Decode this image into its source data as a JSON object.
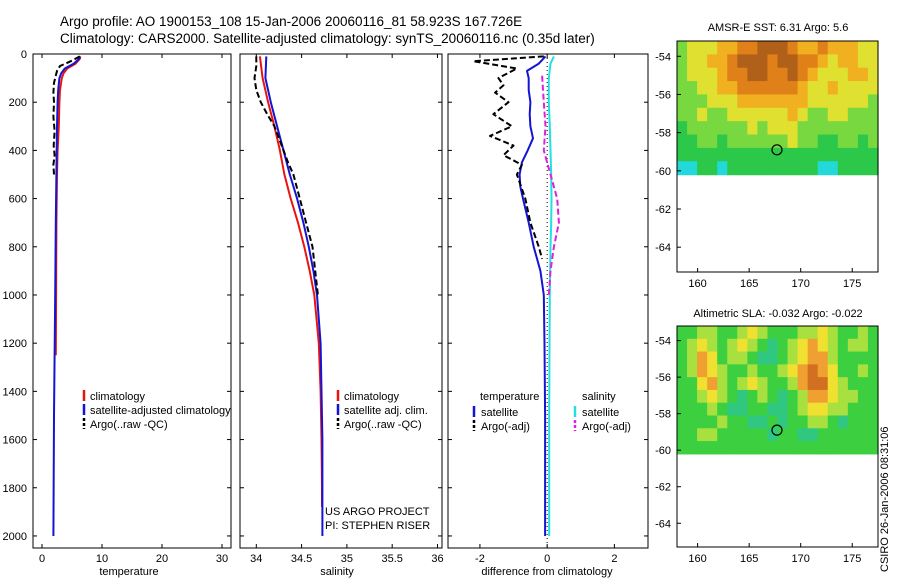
{
  "header": {
    "line1": "Argo profile: AO 1900153_108 15-Jan-2006 20060116_81 58.923S 167.726E",
    "line2": "Climatology: CARS2000. Satellite-adjusted climatology: synTS_20060116.nc (0.35d later)"
  },
  "side_label": "CSIRO 26-Jan-2006 08:31:06",
  "colors": {
    "climatology": "#e8150f",
    "satellite": "#1414d2",
    "argo": "#000000",
    "salinity_satellite": "#22e0e0",
    "salinity_argo": "#e020e0"
  },
  "chart_data": [
    {
      "type": "line",
      "id": "temperature",
      "xlabel": "temperature",
      "ylabel": "",
      "xlim": [
        -1.5,
        31.5
      ],
      "ylim": [
        2050,
        0
      ],
      "xticks": [
        0,
        10,
        20,
        30
      ],
      "yticks": [
        0,
        200,
        400,
        600,
        800,
        1000,
        1200,
        1400,
        1600,
        1800,
        2000
      ],
      "legend": {
        "placement": "lower-right",
        "entries": [
          "climatology",
          "satellite-adjusted climatology",
          "Argo(..raw -QC)"
        ]
      },
      "series": [
        {
          "name": "climatology",
          "style": "solid",
          "y": [
            10,
            20,
            40,
            60,
            80,
            100,
            150,
            200,
            300,
            400,
            500,
            700,
            1000,
            1250
          ],
          "x": [
            6.4,
            6.3,
            5.6,
            4.2,
            3.6,
            3.3,
            3.0,
            2.9,
            2.8,
            2.6,
            2.5,
            2.4,
            2.35,
            2.3
          ]
        },
        {
          "name": "satellite-adjusted climatology",
          "style": "solid",
          "y": [
            10,
            20,
            40,
            60,
            80,
            100,
            150,
            200,
            300,
            400,
            500,
            700,
            1000,
            1500,
            2000
          ],
          "x": [
            6.3,
            6.2,
            5.3,
            3.8,
            3.2,
            2.9,
            2.7,
            2.6,
            2.5,
            2.45,
            2.4,
            2.3,
            2.2,
            2.0,
            1.9
          ]
        },
        {
          "name": "Argo(..raw -QC)",
          "style": "dashed",
          "y": [
            10,
            30,
            50,
            70,
            90,
            120,
            160,
            200,
            260,
            320,
            380,
            420,
            460,
            500
          ],
          "x": [
            6.3,
            4.8,
            3.0,
            2.5,
            2.3,
            2.0,
            1.9,
            2.0,
            1.9,
            2.1,
            1.95,
            2.1,
            1.9,
            2.0
          ]
        }
      ]
    },
    {
      "type": "line",
      "id": "salinity",
      "xlabel": "salinity",
      "ylabel": "",
      "xlim": [
        33.82,
        36.05
      ],
      "ylim": [
        2050,
        0
      ],
      "xticks": [
        34,
        34.5,
        35,
        35.5,
        36
      ],
      "xticklabels": [
        "34",
        "34.5",
        "35",
        "35.5",
        "36"
      ],
      "legend": {
        "placement": "lower-right",
        "entries": [
          "climatology",
          "satellite adj. clim.",
          "Argo(..raw -QC)"
        ]
      },
      "annotation": [
        "US ARGO PROJECT",
        "PI: STEPHEN RISER"
      ],
      "series": [
        {
          "name": "climatology",
          "style": "solid",
          "y": [
            10,
            100,
            200,
            300,
            400,
            500,
            600,
            700,
            800,
            900,
            1000,
            1200,
            1400,
            1600,
            1800,
            1880
          ],
          "x": [
            34.04,
            34.07,
            34.13,
            34.2,
            34.26,
            34.31,
            34.38,
            34.46,
            34.53,
            34.59,
            34.64,
            34.69,
            34.71,
            34.72,
            34.725,
            34.725
          ]
        },
        {
          "name": "satellite adj. clim.",
          "style": "solid",
          "y": [
            10,
            100,
            200,
            300,
            400,
            500,
            600,
            700,
            800,
            900,
            1000,
            1200,
            1400,
            1600,
            1800,
            2000
          ],
          "x": [
            34.11,
            34.1,
            34.16,
            34.23,
            34.3,
            34.37,
            34.45,
            34.52,
            34.58,
            34.63,
            34.67,
            34.71,
            34.72,
            34.73,
            34.73,
            34.73
          ]
        },
        {
          "name": "Argo(..raw -QC)",
          "style": "dashed",
          "y": [
            10,
            50,
            100,
            150,
            200,
            250,
            300,
            350,
            400,
            450,
            500,
            600,
            700,
            800,
            900,
            1000
          ],
          "x": [
            34.0,
            34.0,
            33.98,
            34.0,
            34.05,
            34.12,
            34.2,
            34.25,
            34.3,
            34.35,
            34.41,
            34.48,
            34.55,
            34.62,
            34.65,
            34.68
          ]
        }
      ]
    },
    {
      "type": "line",
      "id": "difference",
      "xlabel": "difference from climatology",
      "ylabel": "",
      "xlim": [
        -2.95,
        3.0
      ],
      "ylim": [
        2050,
        0
      ],
      "xticks": [
        -2,
        0,
        2
      ],
      "legend": {
        "placement": "lower-center",
        "groups": [
          {
            "title": "temperature",
            "entries": [
              "satellite",
              "Argo(-adj)"
            ]
          },
          {
            "title": "salinity",
            "entries": [
              "satellite",
              "Argo(-adj)"
            ]
          }
        ]
      },
      "series": [
        {
          "name": "temperature satellite",
          "style": "solid",
          "color_key": "satellite",
          "y": [
            10,
            40,
            70,
            100,
            150,
            200,
            250,
            300,
            350,
            400,
            450,
            500,
            550,
            600,
            700,
            800,
            900,
            1000,
            1200,
            1500,
            2000
          ],
          "x": [
            -0.05,
            -0.25,
            -0.6,
            -0.55,
            -0.55,
            -0.5,
            -0.52,
            -0.5,
            -0.42,
            -0.58,
            -0.75,
            -0.82,
            -0.8,
            -0.72,
            -0.55,
            -0.4,
            -0.2,
            -0.1,
            -0.08,
            -0.06,
            -0.06
          ]
        },
        {
          "name": "temperature Argo(-adj)",
          "style": "dashed",
          "color_key": "argo",
          "y": [
            10,
            30,
            60,
            100,
            130,
            160,
            200,
            250,
            300,
            340,
            380,
            420,
            460,
            500,
            560,
            600,
            700,
            800,
            850
          ],
          "x": [
            -0.1,
            -2.2,
            -0.9,
            -1.45,
            -1.3,
            -1.55,
            -1.15,
            -1.6,
            -1.05,
            -1.7,
            -1.0,
            -1.3,
            -0.75,
            -0.9,
            -0.75,
            -0.65,
            -0.5,
            -0.25,
            -0.15
          ]
        },
        {
          "name": "salinity satellite",
          "style": "solid",
          "color_key": "salinity_satellite",
          "y": [
            10,
            40,
            100,
            200,
            300,
            400,
            500,
            600,
            700,
            800,
            1000,
            1200,
            1500,
            2000
          ],
          "x": [
            0.2,
            0.1,
            0.05,
            0.05,
            0.08,
            0.1,
            0.12,
            0.13,
            0.12,
            0.1,
            0.08,
            0.07,
            0.06,
            0.06
          ]
        },
        {
          "name": "salinity Argo(-adj)",
          "style": "dashed",
          "color_key": "salinity_argo",
          "y": [
            90,
            200,
            300,
            400,
            500,
            600,
            700,
            800,
            900,
            1000
          ],
          "x": [
            -0.15,
            -0.1,
            -0.05,
            -0.1,
            0.1,
            0.3,
            0.35,
            0.2,
            0.1,
            0.05
          ]
        }
      ]
    },
    {
      "type": "heatmap",
      "id": "sst-map",
      "title": "AMSR-E SST: 6.31 Argo: 5.6",
      "xlim": [
        158,
        177.5
      ],
      "ylim": [
        -65.3,
        -53.2
      ],
      "xticks": [
        160,
        165,
        170,
        175
      ],
      "yticks": [
        -54,
        -56,
        -58,
        -60,
        -62,
        -64
      ],
      "data_southern_limit": -60.2,
      "marker": {
        "lon": 167.7,
        "lat": -58.9
      },
      "palette": [
        "#22d8d8",
        "#2cc84a",
        "#78d840",
        "#e0e030",
        "#f0b020",
        "#e08018",
        "#b06018"
      ],
      "rows": [
        [
          2,
          3,
          3,
          3,
          4,
          4,
          5,
          5,
          6,
          6,
          6,
          5,
          4,
          4,
          5,
          4,
          4,
          4,
          3,
          3
        ],
        [
          2,
          3,
          3,
          4,
          4,
          5,
          6,
          6,
          6,
          5,
          6,
          6,
          5,
          5,
          4,
          3,
          4,
          4,
          3,
          3
        ],
        [
          2,
          3,
          3,
          3,
          4,
          5,
          5,
          6,
          6,
          5,
          5,
          6,
          5,
          4,
          3,
          3,
          3,
          4,
          4,
          3
        ],
        [
          2,
          2,
          3,
          3,
          4,
          4,
          5,
          5,
          5,
          5,
          5,
          5,
          4,
          3,
          3,
          4,
          3,
          3,
          3,
          3
        ],
        [
          2,
          2,
          2,
          3,
          3,
          3,
          4,
          4,
          4,
          4,
          4,
          4,
          4,
          3,
          3,
          3,
          3,
          3,
          3,
          2
        ],
        [
          2,
          2,
          3,
          2,
          2,
          3,
          3,
          3,
          3,
          3,
          3,
          4,
          3,
          2,
          2,
          3,
          3,
          2,
          2,
          2
        ],
        [
          1,
          2,
          2,
          2,
          2,
          2,
          2,
          3,
          2,
          3,
          3,
          3,
          2,
          2,
          2,
          2,
          2,
          2,
          2,
          2
        ],
        [
          1,
          1,
          2,
          2,
          1,
          2,
          2,
          2,
          2,
          2,
          2,
          3,
          2,
          2,
          1,
          1,
          2,
          2,
          1,
          2
        ],
        [
          1,
          1,
          1,
          1,
          1,
          1,
          1,
          1,
          1,
          1,
          1,
          1,
          1,
          1,
          1,
          1,
          1,
          1,
          1,
          1
        ],
        [
          0,
          0,
          1,
          1,
          0,
          1,
          1,
          1,
          1,
          1,
          1,
          1,
          1,
          1,
          0,
          0,
          1,
          1,
          1,
          1
        ]
      ]
    },
    {
      "type": "heatmap",
      "id": "sla-map",
      "title": "Altimetric SLA: -0.032 Argo: -0.022",
      "xlim": [
        158,
        177.5
      ],
      "ylim": [
        -65.3,
        -53.2
      ],
      "xticks": [
        160,
        165,
        170,
        175
      ],
      "yticks": [
        -54,
        -56,
        -58,
        -60,
        -62,
        -64
      ],
      "data_southern_limit": -60.2,
      "marker": {
        "lon": 167.7,
        "lat": -58.9
      },
      "palette": [
        "#20b8e0",
        "#30c880",
        "#3cd040",
        "#a8e040",
        "#f0e030",
        "#f0a030",
        "#d07020"
      ],
      "rows": [
        [
          2,
          2,
          3,
          3,
          2,
          2,
          3,
          4,
          3,
          2,
          2,
          2,
          3,
          3,
          4,
          3,
          2,
          2,
          3,
          2
        ],
        [
          2,
          3,
          4,
          3,
          2,
          3,
          4,
          3,
          2,
          1,
          2,
          3,
          4,
          5,
          4,
          3,
          2,
          3,
          3,
          2
        ],
        [
          2,
          3,
          5,
          4,
          2,
          3,
          3,
          2,
          1,
          1,
          2,
          3,
          4,
          5,
          5,
          3,
          2,
          2,
          2,
          2
        ],
        [
          2,
          3,
          5,
          4,
          3,
          2,
          2,
          3,
          2,
          2,
          3,
          4,
          5,
          6,
          5,
          4,
          2,
          2,
          3,
          2
        ],
        [
          2,
          2,
          4,
          5,
          3,
          2,
          3,
          4,
          3,
          2,
          2,
          3,
          5,
          6,
          6,
          4,
          3,
          2,
          2,
          2
        ],
        [
          2,
          2,
          3,
          4,
          3,
          2,
          1,
          2,
          3,
          2,
          1,
          2,
          3,
          5,
          5,
          4,
          3,
          3,
          2,
          2
        ],
        [
          2,
          2,
          2,
          3,
          2,
          1,
          1,
          2,
          2,
          1,
          1,
          2,
          3,
          4,
          4,
          3,
          3,
          2,
          2,
          2
        ],
        [
          2,
          2,
          2,
          2,
          3,
          2,
          2,
          1,
          1,
          2,
          1,
          2,
          2,
          3,
          3,
          2,
          1,
          2,
          2,
          2
        ],
        [
          2,
          2,
          3,
          3,
          2,
          2,
          2,
          2,
          2,
          1,
          2,
          2,
          1,
          1,
          2,
          2,
          2,
          2,
          2,
          2
        ],
        [
          2,
          2,
          2,
          2,
          2,
          2,
          2,
          2,
          2,
          2,
          2,
          2,
          2,
          2,
          2,
          2,
          2,
          2,
          2,
          2
        ]
      ]
    }
  ]
}
